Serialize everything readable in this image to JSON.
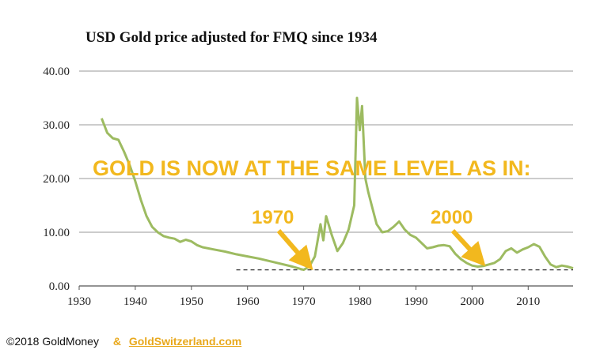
{
  "chart_data": {
    "type": "line",
    "title": "USD Gold price adjusted for FMQ since 1934",
    "xlabel": "",
    "ylabel": "",
    "xlim": [
      1930,
      2018
    ],
    "ylim": [
      0,
      40
    ],
    "grid": true,
    "x_ticks": [
      "1930",
      "1940",
      "1950",
      "1960",
      "1970",
      "1980",
      "1990",
      "2000",
      "2010"
    ],
    "y_ticks": [
      "0.00",
      "10.00",
      "20.00",
      "30.00",
      "40.00"
    ],
    "line_color": "#9dbb61",
    "reference_level": 3.0,
    "series": [
      {
        "x": [
          1934,
          1935,
          1936,
          1937,
          1938,
          1939,
          1940,
          1941,
          1942,
          1943,
          1944,
          1945,
          1946,
          1947,
          1948,
          1949,
          1950,
          1951,
          1952,
          1954,
          1956,
          1958,
          1960,
          1962,
          1964,
          1966,
          1968,
          1969,
          1970,
          1971,
          1972,
          1973,
          1973.5,
          1974,
          1975,
          1976,
          1977,
          1978,
          1979,
          1979.5,
          1980,
          1980.4,
          1981,
          1981.5,
          1982,
          1983,
          1984,
          1985,
          1986,
          1987,
          1988,
          1989,
          1990,
          1991,
          1992,
          1993,
          1994,
          1995,
          1996,
          1997,
          1998,
          1999,
          2000,
          2001,
          2002,
          2003,
          2004,
          2005,
          2006,
          2007,
          2008,
          2009,
          2010,
          2011,
          2012,
          2013,
          2014,
          2015,
          2016,
          2017,
          2018
        ],
        "y": [
          31.2,
          28.5,
          27.5,
          27.2,
          25,
          22.5,
          19.5,
          16,
          13,
          11,
          10,
          9.3,
          9,
          8.8,
          8.2,
          8.6,
          8.3,
          7.6,
          7.2,
          6.8,
          6.4,
          5.9,
          5.5,
          5.1,
          4.6,
          4.1,
          3.6,
          3.3,
          3.0,
          3.6,
          5.5,
          11.5,
          8.5,
          13.0,
          9.5,
          6.5,
          8.0,
          10.5,
          15.0,
          35.0,
          29.0,
          33.5,
          20.0,
          17.5,
          15.5,
          11.5,
          10.0,
          10.2,
          11.0,
          12.0,
          10.5,
          9.5,
          9.0,
          8.0,
          7.0,
          7.2,
          7.5,
          7.6,
          7.4,
          6.0,
          5.0,
          4.3,
          3.8,
          3.6,
          3.7,
          4.0,
          4.3,
          5.0,
          6.5,
          7.0,
          6.2,
          6.8,
          7.2,
          7.8,
          7.3,
          5.5,
          4.0,
          3.5,
          3.8,
          3.6,
          3.3
        ]
      }
    ],
    "annotations": [
      {
        "text": "GOLD IS NOW AT THE SAME LEVEL AS IN:"
      },
      {
        "text": "1970",
        "x": 1970,
        "y": 3.0
      },
      {
        "text": "2000",
        "x": 2001,
        "y": 3.7
      }
    ]
  },
  "footer": {
    "copyright": "©2018 GoldMoney",
    "amp": "&",
    "link": "GoldSwitzerland.com"
  }
}
